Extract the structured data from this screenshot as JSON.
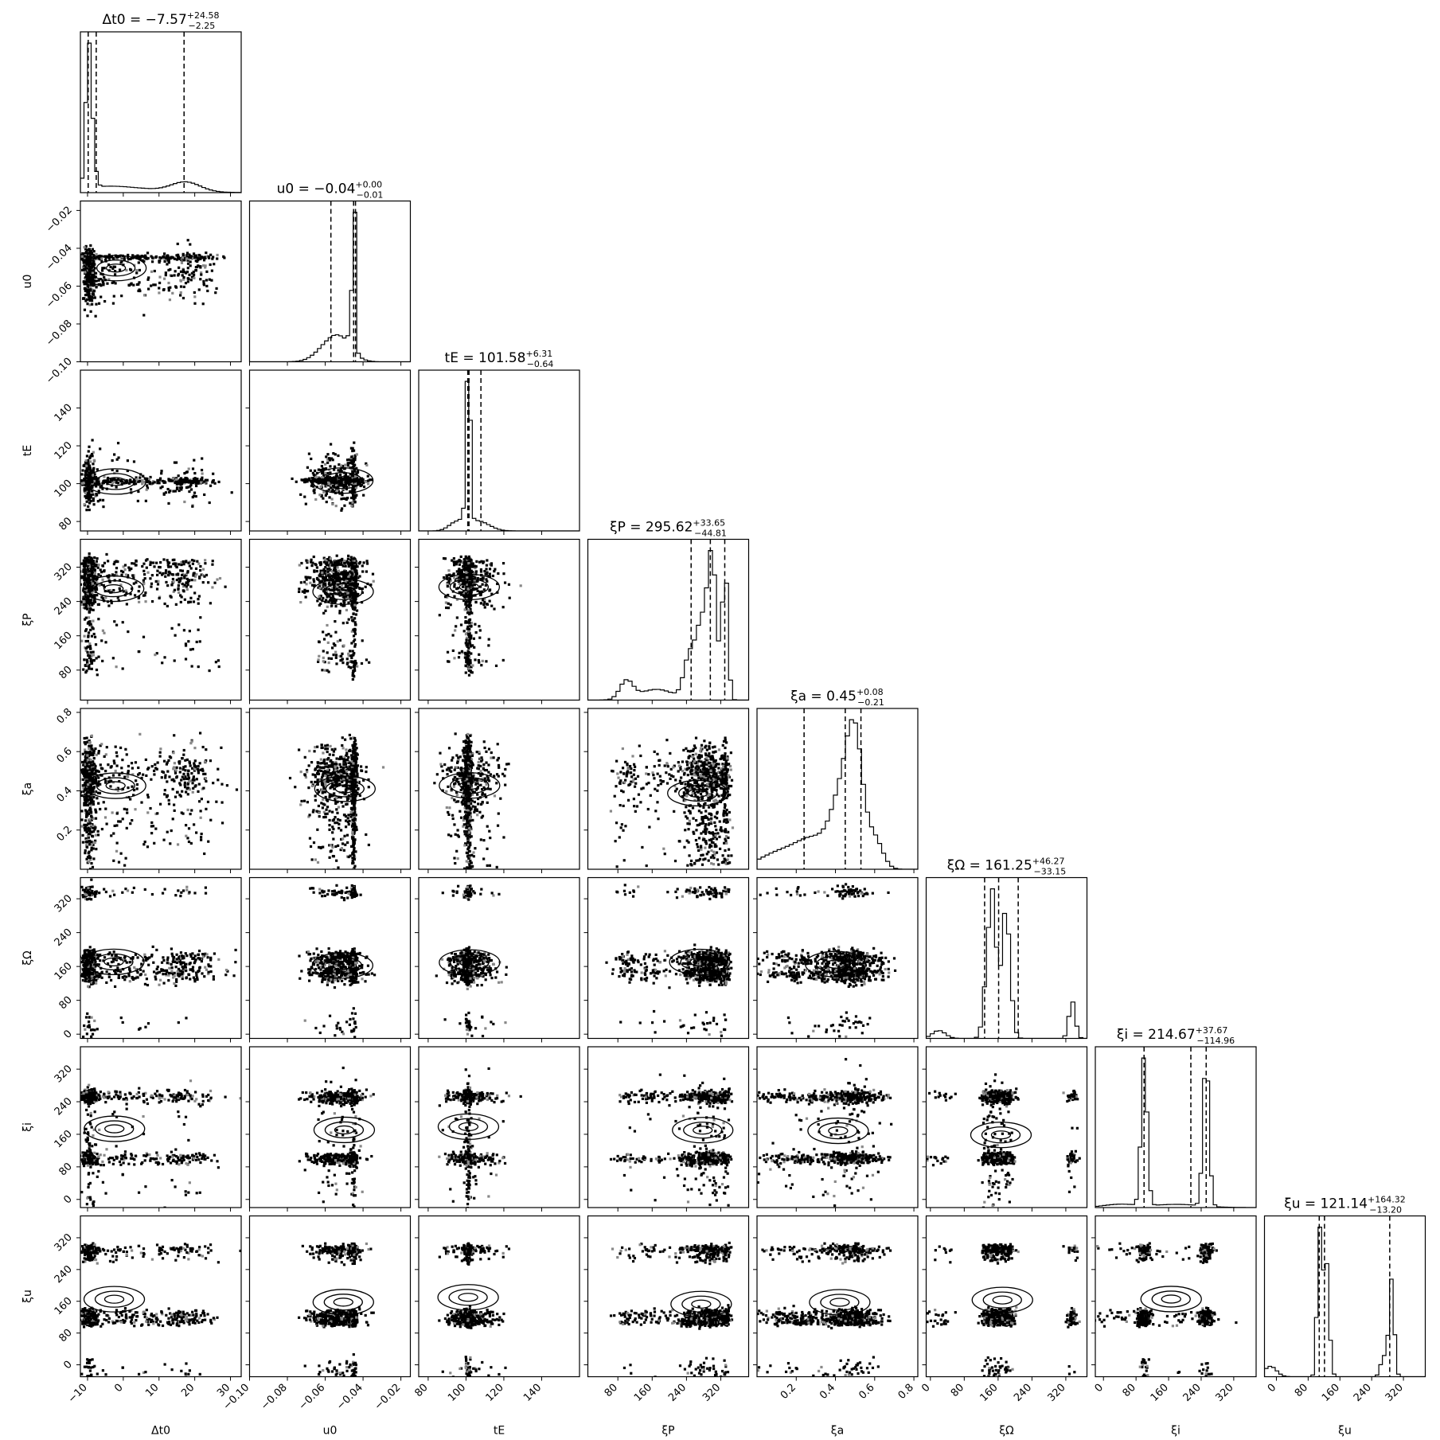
{
  "chart_data": {
    "type": "corner",
    "parameters": [
      {
        "key": "dt0",
        "label": "Δt0",
        "ticks": [
          -10,
          0,
          10,
          20,
          30
        ],
        "range": [
          -12,
          33
        ],
        "title": {
          "prefix": "Δt0 = ",
          "median": "−7.57",
          "plus": "+24.58",
          "minus": "−2.25"
        },
        "quantiles": [
          -9.82,
          -7.57,
          17.01
        ]
      },
      {
        "key": "u0",
        "label": "u0",
        "ticks": [
          -0.1,
          -0.08,
          -0.06,
          -0.04,
          -0.02
        ],
        "tick_labels": [
          "−0.10",
          "−0.08",
          "−0.06",
          "−0.04",
          "−0.02"
        ],
        "range": [
          -0.1,
          -0.015
        ],
        "title": {
          "prefix": "u0 = ",
          "median": "−0.04",
          "plus": "+0.00",
          "minus": "−0.01"
        },
        "quantiles": [
          -0.057,
          -0.045,
          -0.044
        ]
      },
      {
        "key": "tE",
        "label": "tE",
        "ticks": [
          80,
          100,
          120,
          140
        ],
        "range": [
          75,
          160
        ],
        "title": {
          "prefix": "tE = ",
          "median": "101.58",
          "plus": "+6.31",
          "minus": "−0.64"
        },
        "quantiles": [
          100.94,
          101.58,
          107.89
        ]
      },
      {
        "key": "xiP",
        "label": "ξP",
        "ticks": [
          80,
          160,
          240,
          320
        ],
        "range": [
          10,
          385
        ],
        "title": {
          "prefix": "ξP = ",
          "median": "295.62",
          "plus": "+33.65",
          "minus": "−44.81"
        },
        "quantiles": [
          250.81,
          295.62,
          329.27
        ]
      },
      {
        "key": "xia",
        "label": "ξa",
        "ticks": [
          0.2,
          0.4,
          0.6,
          0.8
        ],
        "range": [
          0.0,
          0.82
        ],
        "title": {
          "prefix": "ξa = ",
          "median": "0.45",
          "plus": "+0.08",
          "minus": "−0.21"
        },
        "quantiles": [
          0.24,
          0.45,
          0.53
        ]
      },
      {
        "key": "xiOmega",
        "label": "ξΩ",
        "ticks": [
          0,
          80,
          160,
          240,
          320
        ],
        "range": [
          -10,
          370
        ],
        "title": {
          "prefix": "ξΩ = ",
          "median": "161.25",
          "plus": "+46.27",
          "minus": "−33.15"
        },
        "quantiles": [
          128.1,
          161.25,
          207.52
        ]
      },
      {
        "key": "xii",
        "label": "ξi",
        "ticks": [
          0,
          80,
          160,
          240,
          320
        ],
        "range": [
          -20,
          375
        ],
        "title": {
          "prefix": "ξi = ",
          "median": "214.67",
          "plus": "+37.67",
          "minus": "−114.96"
        },
        "quantiles": [
          99.71,
          214.67,
          252.34
        ]
      },
      {
        "key": "xiu",
        "label": "ξu",
        "ticks": [
          0,
          80,
          160,
          240,
          320
        ],
        "range": [
          -30,
          375
        ],
        "title": {
          "prefix": "ξu = ",
          "median": "121.14",
          "plus": "+164.32",
          "minus": "−13.20"
        },
        "quantiles": [
          107.94,
          121.14,
          285.46
        ]
      }
    ],
    "histograms": {
      "dt0": {
        "type": "modes",
        "modes": [
          {
            "c": -9.8,
            "w": 0.7,
            "h": 1.0
          },
          {
            "c": -9.0,
            "w": 0.9,
            "h": 0.45
          },
          {
            "c": -5,
            "w": 8,
            "h": 0.04
          },
          {
            "c": 17.5,
            "w": 4,
            "h": 0.08
          },
          {
            "c": 5,
            "w": 12,
            "h": 0.02
          }
        ],
        "bins": 45
      },
      "u0": {
        "type": "modes",
        "modes": [
          {
            "c": -0.0448,
            "w": 0.0006,
            "h": 1.0
          },
          {
            "c": -0.046,
            "w": 0.0015,
            "h": 0.08
          },
          {
            "c": -0.052,
            "w": 0.006,
            "h": 0.1
          },
          {
            "c": -0.06,
            "w": 0.006,
            "h": 0.05
          }
        ],
        "bins": 45
      },
      "tE": {
        "type": "modes",
        "modes": [
          {
            "c": 101.3,
            "w": 0.8,
            "h": 1.0
          },
          {
            "c": 100.5,
            "w": 1.5,
            "h": 0.1
          },
          {
            "c": 106,
            "w": 6,
            "h": 0.05
          },
          {
            "c": 95,
            "w": 4,
            "h": 0.04
          }
        ],
        "bins": 45
      },
      "xiP": {
        "type": "modes",
        "modes": [
          {
            "c": 330,
            "w": 6,
            "h": 0.95
          },
          {
            "c": 300,
            "w": 10,
            "h": 0.9
          },
          {
            "c": 275,
            "w": 14,
            "h": 0.5
          },
          {
            "c": 245,
            "w": 12,
            "h": 0.25
          },
          {
            "c": 100,
            "w": 15,
            "h": 0.12
          },
          {
            "c": 170,
            "w": 40,
            "h": 0.07
          }
        ],
        "bins": 40
      },
      "xia": {
        "type": "modes",
        "modes": [
          {
            "c": 0.5,
            "w": 0.04,
            "h": 1.0
          },
          {
            "c": 0.43,
            "w": 0.05,
            "h": 0.5
          },
          {
            "c": 0.3,
            "w": 0.1,
            "h": 0.25
          },
          {
            "c": 0.1,
            "w": 0.1,
            "h": 0.12
          },
          {
            "c": 0.6,
            "w": 0.04,
            "h": 0.25
          }
        ],
        "bins": 40
      },
      "xiOmega": {
        "type": "modes",
        "modes": [
          {
            "c": 178,
            "w": 10,
            "h": 1.0
          },
          {
            "c": 140,
            "w": 10,
            "h": 0.8
          },
          {
            "c": 150,
            "w": 6,
            "h": 0.6
          },
          {
            "c": 335,
            "w": 7,
            "h": 0.3
          },
          {
            "c": 20,
            "w": 15,
            "h": 0.06
          }
        ],
        "bins": 40
      },
      "xii": {
        "type": "modes",
        "modes": [
          {
            "c": 100,
            "w": 7,
            "h": 1.0
          },
          {
            "c": 252,
            "w": 7,
            "h": 1.0
          },
          {
            "c": 180,
            "w": 60,
            "h": 0.02
          },
          {
            "c": 40,
            "w": 40,
            "h": 0.02
          }
        ],
        "bins": 45
      },
      "xiu": {
        "type": "modes",
        "modes": [
          {
            "c": 108,
            "w": 5,
            "h": 0.75
          },
          {
            "c": 125,
            "w": 7,
            "h": 0.6
          },
          {
            "c": 290,
            "w": 6,
            "h": 0.5
          },
          {
            "c": 270,
            "w": 7,
            "h": 0.1
          },
          {
            "c": -15,
            "w": 15,
            "h": 0.05
          }
        ],
        "bins": 45
      }
    },
    "bins_per_scatter": 35
  },
  "colors": {
    "ink": "#000000",
    "background": "#ffffff",
    "contour_fill_light": "#efefef",
    "contour_fill_dark": "#7a7a7a"
  }
}
